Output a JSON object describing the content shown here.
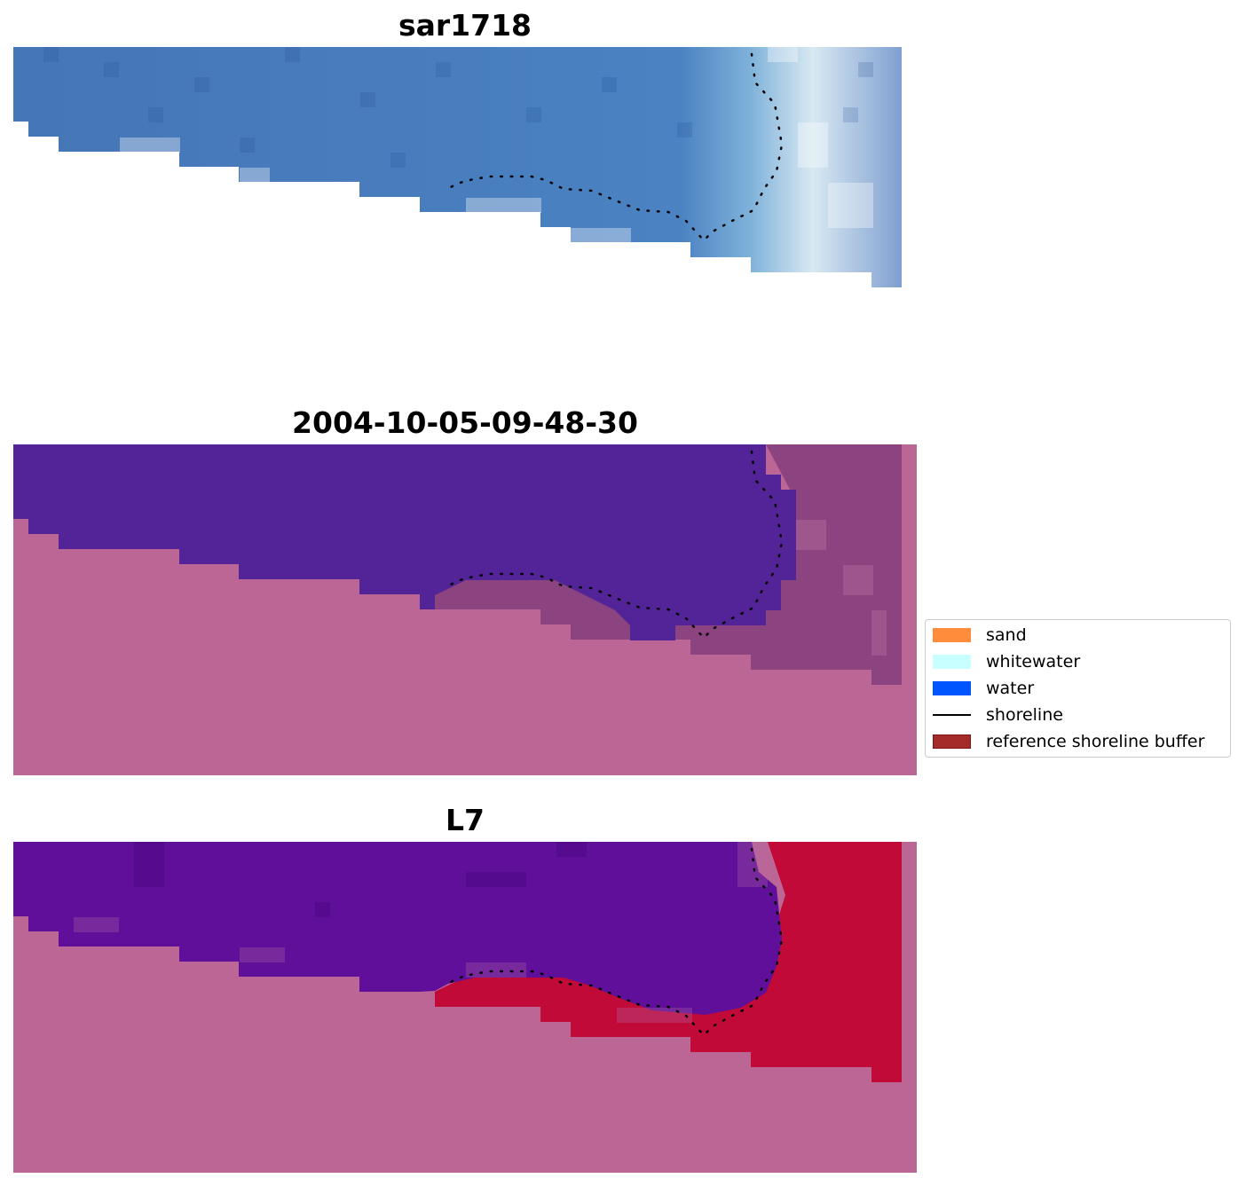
{
  "panels": [
    {
      "title": "sar1718"
    },
    {
      "title": "2004-10-05-09-48-30"
    },
    {
      "title": "L7"
    }
  ],
  "legend": {
    "items": [
      {
        "label": "sand",
        "color": "#ff8c3a",
        "kind": "patch"
      },
      {
        "label": "whitewater",
        "color": "#c8ffff",
        "kind": "patch"
      },
      {
        "label": "water",
        "color": "#0055ff",
        "kind": "patch"
      },
      {
        "label": "shoreline",
        "color": "#000000",
        "kind": "line"
      },
      {
        "label": "reference shoreline buffer",
        "color": "#a52a2a",
        "kind": "patch"
      }
    ]
  },
  "colors": {
    "rgb_water": "#4a78b8",
    "class_water": "#532398",
    "class_land": "#bc6696",
    "class_buffer": "#86407e",
    "index_water": "#5f0f99",
    "index_land": "#bc6696",
    "index_red": "#c2002f"
  }
}
